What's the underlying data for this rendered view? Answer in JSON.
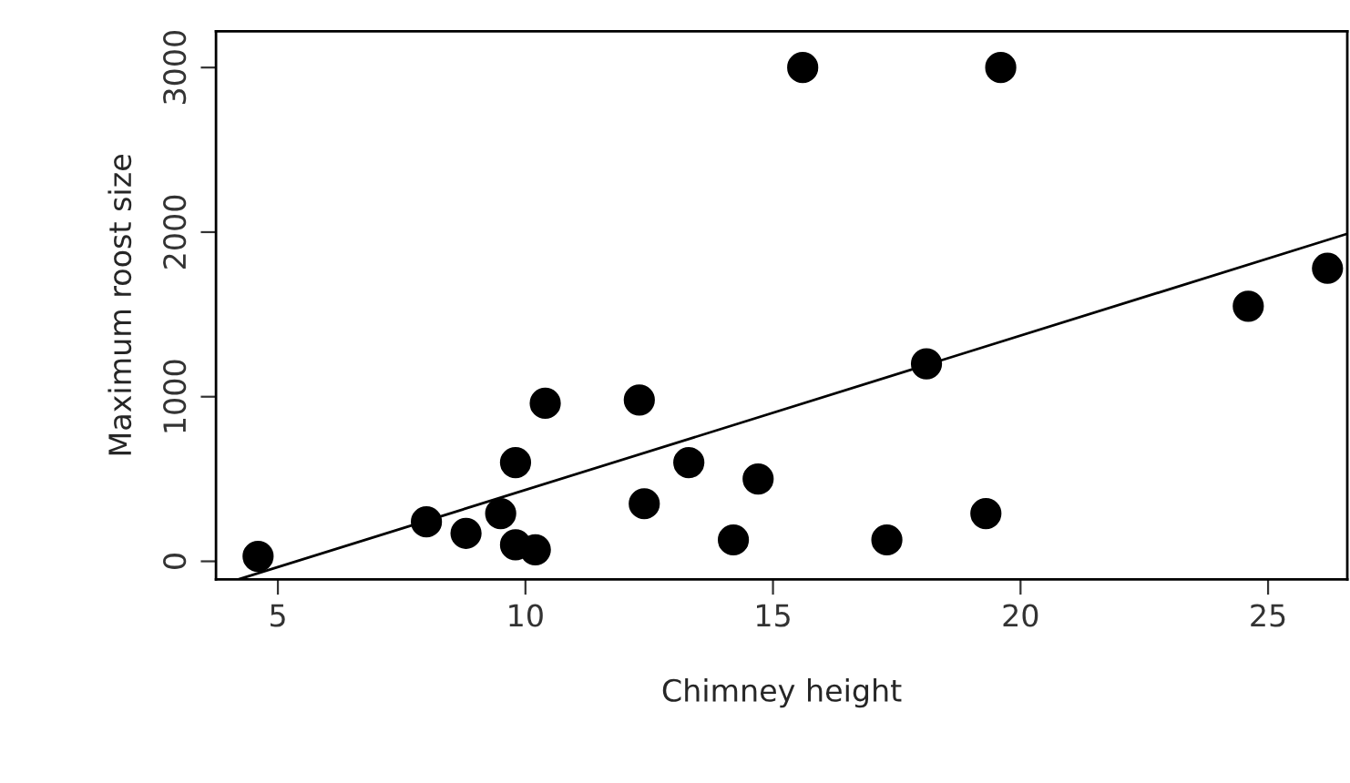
{
  "chart_data": {
    "type": "scatter",
    "xlabel": "Chimney height",
    "ylabel": "Maximum roost size",
    "xlim": [
      3.75,
      26.6
    ],
    "ylim": [
      -110,
      3220
    ],
    "xticks": [
      5,
      10,
      15,
      20,
      25
    ],
    "yticks": [
      0,
      1000,
      2000,
      3000
    ],
    "grid": false,
    "series": [
      {
        "color": "#000000",
        "marker": "circle",
        "x": [
          4.6,
          8.0,
          8.8,
          9.5,
          9.8,
          9.8,
          10.2,
          10.4,
          12.3,
          12.4,
          13.3,
          14.2,
          14.7,
          15.6,
          17.3,
          18.1,
          19.3,
          19.6,
          24.6,
          26.2
        ],
        "values": [
          30,
          240,
          170,
          290,
          600,
          100,
          70,
          960,
          980,
          350,
          600,
          130,
          500,
          3000,
          130,
          1200,
          290,
          3000,
          1550,
          1780
        ]
      },
      {
        "type": "line",
        "color": "#000000",
        "line_style": "solid",
        "x": [
          4.2,
          26.6
        ],
        "values": [
          -110,
          1990
        ]
      }
    ]
  }
}
